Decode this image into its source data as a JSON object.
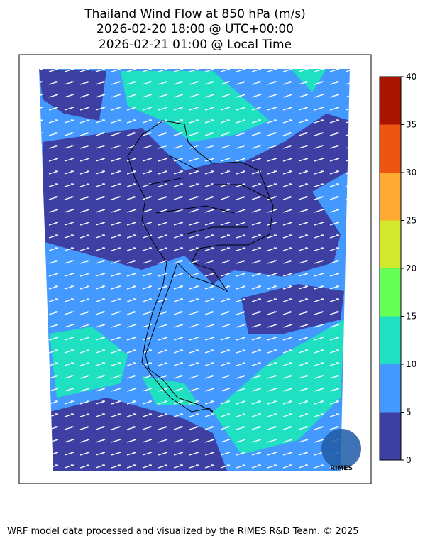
{
  "title": [
    "Thailand Wind Flow at 850 hPa (m/s)",
    "2026-02-20 18:00 @ UTC+00:00",
    "2026-02-21 01:00 @ Local Time"
  ],
  "colorbar": {
    "ticks": [
      0,
      5,
      10,
      15,
      20,
      25,
      30,
      35,
      40
    ],
    "colors": [
      "#3d3fa3",
      "#4499ff",
      "#1fe0c0",
      "#66ff55",
      "#d2e82c",
      "#ffaa33",
      "#ee5511",
      "#aa1500"
    ]
  },
  "logo": "RIMES",
  "footer": "WRF model data processed and visualized by the RIMES R&D Team. © 2025"
}
